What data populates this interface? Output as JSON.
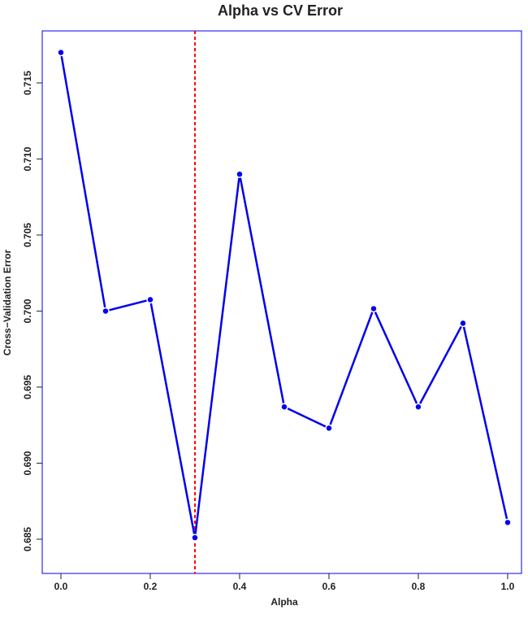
{
  "chart_data": {
    "type": "line",
    "title": "Alpha vs CV Error",
    "x_label": "Alpha",
    "y_label": "Cross−Validation Error",
    "x": [
      0.0,
      0.1,
      0.2,
      0.3,
      0.4,
      0.5,
      0.6,
      0.7,
      0.8,
      0.9,
      1.0
    ],
    "series": [
      {
        "name": "CV Error",
        "color": "#0000ee",
        "values": [
          0.717,
          0.7,
          0.70075,
          0.6851,
          0.709,
          0.6937,
          0.6923,
          0.70016,
          0.6937,
          0.6992,
          0.6861
        ]
      }
    ],
    "xlim": [
      -0.0418,
      1.031
    ],
    "ylim": [
      0.68275,
      0.71842
    ],
    "xticks": [
      {
        "value": 0,
        "label": "0.0"
      },
      0.2,
      0.4,
      0.6,
      0.8,
      {
        "value": 1,
        "label": "1.0"
      }
    ],
    "yticks": [
      0.685,
      {
        "value": 0.69,
        "label": "0.690"
      },
      0.695,
      {
        "value": 0.7,
        "label": "0.700"
      },
      0.705,
      {
        "value": 0.71,
        "label": "0.710"
      },
      0.715
    ],
    "vline": {
      "value": 0.3,
      "color": "#ff0000"
    },
    "frame_color": "#0000ee"
  }
}
